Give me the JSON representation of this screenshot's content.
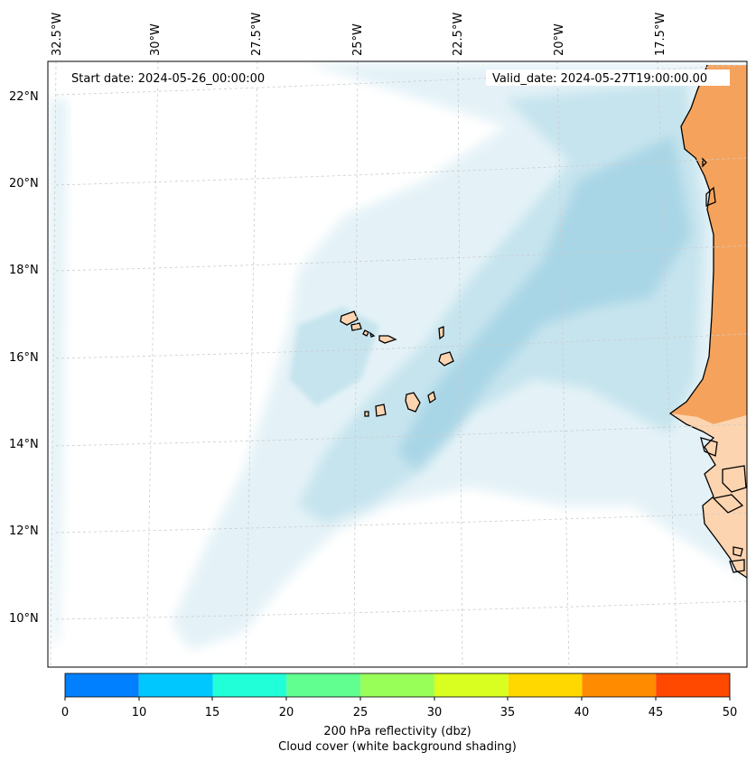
{
  "map": {
    "start_label": "Start date: 2024-05-26_00:00:00",
    "valid_label": "Valid_date: 2024-05-27T19:00:00.00",
    "lon_labels": [
      "32.5°W",
      "30°W",
      "27.5°W",
      "25°W",
      "22.5°W",
      "20°W",
      "17.5°W"
    ],
    "lat_labels": [
      "22°N",
      "20°N",
      "18°N",
      "16°N",
      "14°N",
      "12°N",
      "10°N"
    ],
    "colors": {
      "land": "#fdd4b0",
      "hot_land": "#f5a35c",
      "cloud_light": "#e4f2f7",
      "cloud_mid": "#c6e4ee",
      "cloud_dense": "#a9d6e6",
      "coast": "#000000",
      "grid": "#cccccc"
    }
  },
  "colorbar": {
    "ticks": [
      "0",
      "10",
      "15",
      "20",
      "25",
      "30",
      "35",
      "40",
      "45",
      "50"
    ],
    "colors": [
      "#0080ff",
      "#00c8ff",
      "#20ffd8",
      "#60ff90",
      "#98ff58",
      "#d8ff20",
      "#ffd800",
      "#ff8c00",
      "#ff4800"
    ],
    "label": "200 hPa reflectivity (dbz)",
    "sublabel": "Cloud cover (white background shading)"
  }
}
